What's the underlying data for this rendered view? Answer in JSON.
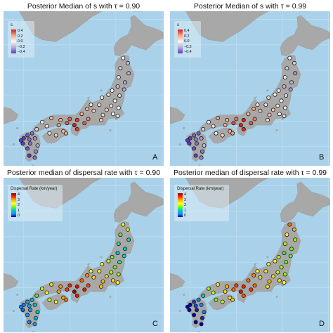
{
  "panels": [
    {
      "id": "A",
      "title": "Posterior Median of s with τ = 0.90",
      "letter": "A",
      "legend_title": "s",
      "legend_ticks": [
        "0.4",
        "0.2",
        "0.0",
        "−0.2",
        "−0.4"
      ],
      "scale": "s",
      "variant": 0
    },
    {
      "id": "B",
      "title": "Posterior Median of s with τ = 0.99",
      "letter": "B",
      "legend_title": "s",
      "legend_ticks": [
        "0.4",
        "0.2",
        "0.0",
        "−0.2",
        "−0.4"
      ],
      "scale": "s",
      "variant": 1
    },
    {
      "id": "C",
      "title": "Posterior median of dispersal rate with τ = 0.90",
      "letter": "C",
      "legend_title": "Dispersal Rate (km/year)",
      "legend_ticks": [
        "4",
        "3",
        "2",
        "1",
        "0"
      ],
      "scale": "rate",
      "variant": 0
    },
    {
      "id": "D",
      "title": "Posterior median of dispersal rate with τ = 0.99",
      "letter": "D",
      "legend_title": "Dispersal Rate (km/year)",
      "legend_ticks": [
        "4",
        "3",
        "2",
        "1",
        "0"
      ],
      "scale": "rate",
      "variant": 1
    }
  ],
  "colors": {
    "sea": "#a9d2ea",
    "land": "#a8a8a8",
    "s_scale": [
      "#d7191c",
      "#f4a582",
      "#f7f7f7",
      "#b2abd2",
      "#5e3cc2"
    ],
    "rate_scale": [
      "#8b0000",
      "#ff2a00",
      "#ffb000",
      "#ffff33",
      "#7cfc00",
      "#00d0c0",
      "#1e90ff",
      "#0000aa"
    ]
  },
  "sites": [
    {
      "lon": 140.8,
      "lat": 41.2,
      "s": 0.0,
      "rate": 2.2
    },
    {
      "lon": 141.3,
      "lat": 40.7,
      "s": -0.15,
      "rate": 2.0
    },
    {
      "lon": 140.5,
      "lat": 40.2,
      "s": -0.1,
      "rate": 1.5
    },
    {
      "lon": 141.4,
      "lat": 39.7,
      "s": -0.2,
      "rate": 1.2
    },
    {
      "lon": 140.3,
      "lat": 39.3,
      "s": -0.05,
      "rate": 1.3
    },
    {
      "lon": 141.0,
      "lat": 38.8,
      "s": -0.2,
      "rate": 1.1
    },
    {
      "lon": 140.2,
      "lat": 38.4,
      "s": -0.15,
      "rate": 1.0
    },
    {
      "lon": 140.9,
      "lat": 38.1,
      "s": -0.2,
      "rate": 1.2
    },
    {
      "lon": 139.6,
      "lat": 38.0,
      "s": 0.0,
      "rate": 1.6
    },
    {
      "lon": 140.4,
      "lat": 37.5,
      "s": -0.1,
      "rate": 1.4
    },
    {
      "lon": 139.2,
      "lat": 37.6,
      "s": 0.05,
      "rate": 2.0
    },
    {
      "lon": 139.9,
      "lat": 37.0,
      "s": 0.0,
      "rate": 1.7
    },
    {
      "lon": 138.5,
      "lat": 37.3,
      "s": 0.05,
      "rate": 2.2
    },
    {
      "lon": 139.5,
      "lat": 36.5,
      "s": 0.05,
      "rate": 1.9
    },
    {
      "lon": 140.3,
      "lat": 36.3,
      "s": 0.0,
      "rate": 1.8
    },
    {
      "lon": 138.2,
      "lat": 36.6,
      "s": 0.05,
      "rate": 2.4
    },
    {
      "lon": 139.0,
      "lat": 36.1,
      "s": 0.1,
      "rate": 2.5
    },
    {
      "lon": 139.7,
      "lat": 35.7,
      "s": 0.0,
      "rate": 2.6
    },
    {
      "lon": 140.2,
      "lat": 35.5,
      "s": -0.05,
      "rate": 2.4
    },
    {
      "lon": 138.6,
      "lat": 35.6,
      "s": 0.1,
      "rate": 2.8
    },
    {
      "lon": 137.6,
      "lat": 36.0,
      "s": 0.1,
      "rate": 2.6
    },
    {
      "lon": 138.4,
      "lat": 35.1,
      "s": 0.1,
      "rate": 2.7
    },
    {
      "lon": 137.3,
      "lat": 36.6,
      "s": 0.05,
      "rate": 2.2
    },
    {
      "lon": 136.9,
      "lat": 36.2,
      "s": 0.15,
      "rate": 3.0
    },
    {
      "lon": 137.0,
      "lat": 35.2,
      "s": 0.25,
      "rate": 3.3
    },
    {
      "lon": 136.3,
      "lat": 35.7,
      "s": 0.2,
      "rate": 3.2
    },
    {
      "lon": 136.6,
      "lat": 34.8,
      "s": 0.3,
      "rate": 3.6
    },
    {
      "lon": 135.8,
      "lat": 35.1,
      "s": 0.35,
      "rate": 3.7
    },
    {
      "lon": 135.5,
      "lat": 34.6,
      "s": 0.4,
      "rate": 3.9
    },
    {
      "lon": 135.0,
      "lat": 35.2,
      "s": 0.3,
      "rate": 3.5
    },
    {
      "lon": 135.8,
      "lat": 34.2,
      "s": 0.35,
      "rate": 3.6
    },
    {
      "lon": 134.7,
      "lat": 34.8,
      "s": 0.3,
      "rate": 3.4
    },
    {
      "lon": 134.0,
      "lat": 35.1,
      "s": 0.2,
      "rate": 3.0
    },
    {
      "lon": 133.8,
      "lat": 34.6,
      "s": 0.2,
      "rate": 2.9
    },
    {
      "lon": 133.0,
      "lat": 35.3,
      "s": 0.15,
      "rate": 2.6
    },
    {
      "lon": 132.5,
      "lat": 34.5,
      "s": 0.05,
      "rate": 2.3
    },
    {
      "lon": 132.0,
      "lat": 34.9,
      "s": 0.0,
      "rate": 2.0
    },
    {
      "lon": 131.4,
      "lat": 34.2,
      "s": -0.1,
      "rate": 1.5
    },
    {
      "lon": 134.3,
      "lat": 34.0,
      "s": 0.15,
      "rate": 2.9
    },
    {
      "lon": 133.5,
      "lat": 33.6,
      "s": 0.1,
      "rate": 2.4
    },
    {
      "lon": 132.8,
      "lat": 33.8,
      "s": 0.05,
      "rate": 2.1
    },
    {
      "lon": 134.6,
      "lat": 33.8,
      "s": 0.2,
      "rate": 3.1
    },
    {
      "lon": 130.4,
      "lat": 33.6,
      "s": -0.35,
      "rate": 0.7
    },
    {
      "lon": 130.9,
      "lat": 33.8,
      "s": -0.3,
      "rate": 0.9
    },
    {
      "lon": 130.0,
      "lat": 33.3,
      "s": -0.4,
      "rate": 0.5
    },
    {
      "lon": 130.6,
      "lat": 33.2,
      "s": -0.3,
      "rate": 0.8
    },
    {
      "lon": 131.2,
      "lat": 33.3,
      "s": -0.25,
      "rate": 1.0
    },
    {
      "lon": 129.9,
      "lat": 32.8,
      "s": -0.4,
      "rate": 0.4
    },
    {
      "lon": 130.7,
      "lat": 32.8,
      "s": -0.3,
      "rate": 0.7
    },
    {
      "lon": 131.5,
      "lat": 32.6,
      "s": -0.2,
      "rate": 1.1
    },
    {
      "lon": 130.4,
      "lat": 32.3,
      "s": -0.35,
      "rate": 0.6
    },
    {
      "lon": 131.3,
      "lat": 32.0,
      "s": -0.25,
      "rate": 0.9
    },
    {
      "lon": 130.6,
      "lat": 31.6,
      "s": -0.4,
      "rate": 0.5
    },
    {
      "lon": 131.2,
      "lat": 31.4,
      "s": -0.3,
      "rate": 0.7
    },
    {
      "lon": 129.7,
      "lat": 33.1,
      "s": -0.4,
      "rate": 0.5
    }
  ]
}
